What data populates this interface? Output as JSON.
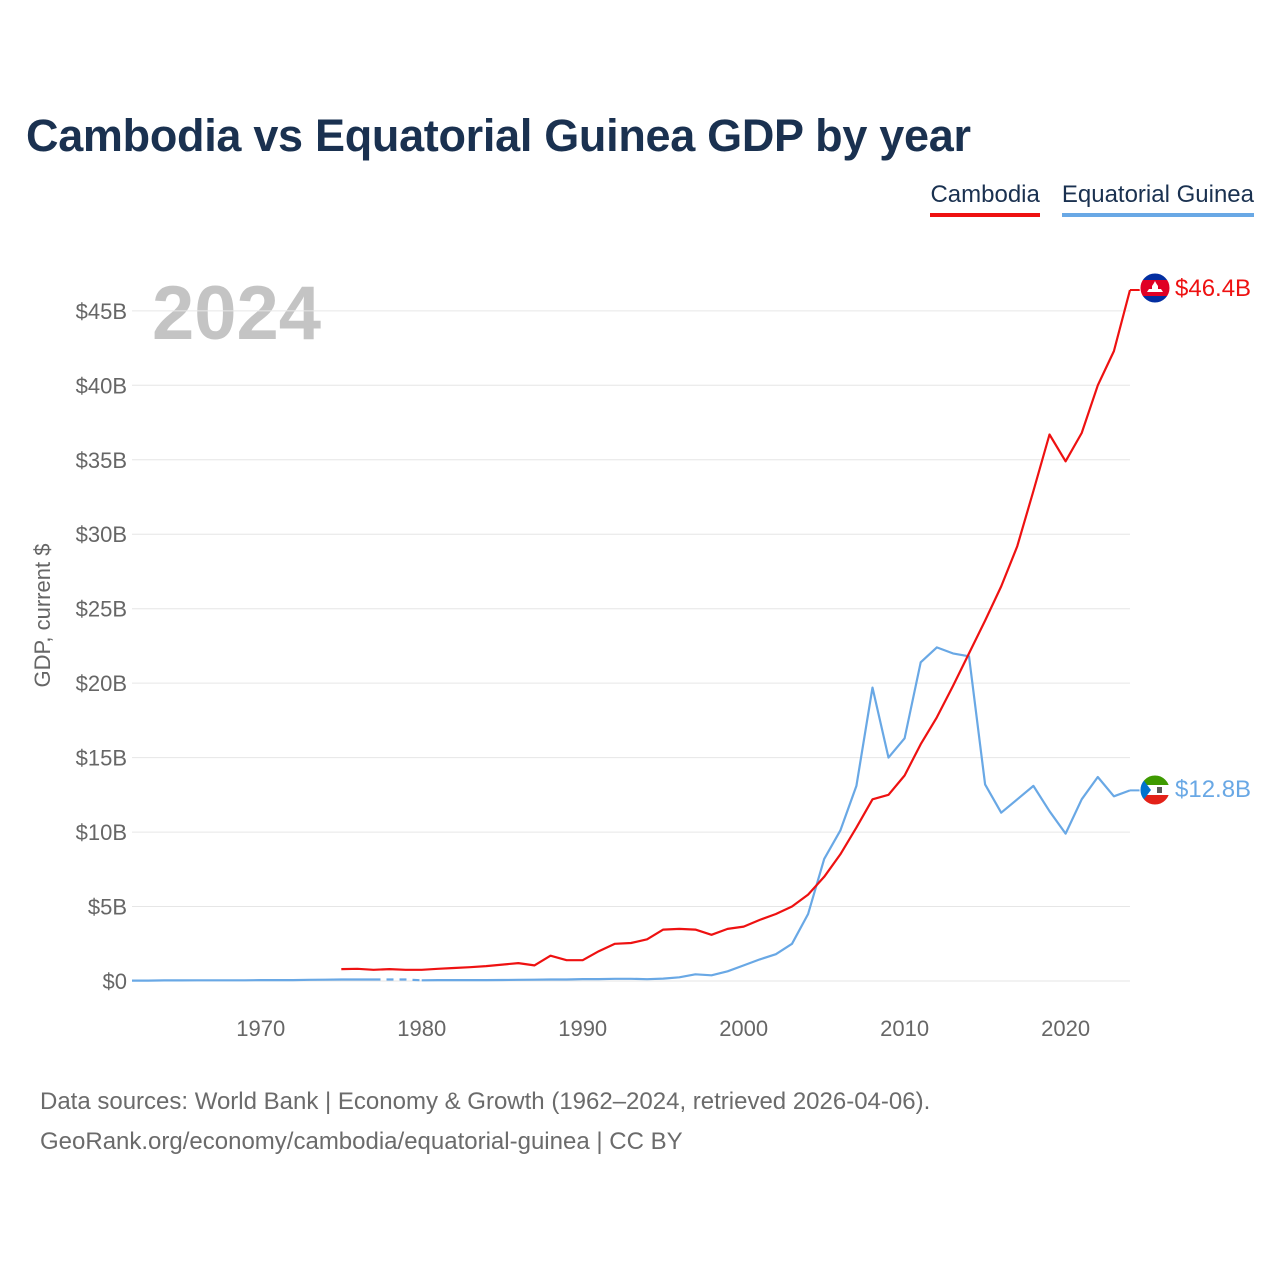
{
  "title": "Cambodia vs Equatorial Guinea GDP by year",
  "legend": {
    "cambodia": "Cambodia",
    "equatorial_guinea": "Equatorial Guinea"
  },
  "footer": {
    "line1": "Data sources: World Bank | Economy & Growth (1962–2024, retrieved 2026-04-06).",
    "line2": "GeoRank.org/economy/cambodia/equatorial-guinea | CC BY"
  },
  "chart_data": {
    "type": "line",
    "title": "Cambodia vs Equatorial Guinea GDP by year",
    "year_label": "2024",
    "xlabel": "",
    "ylabel": "GDP, current $",
    "xlim": [
      1962,
      2024
    ],
    "ylim": [
      0,
      46.4
    ],
    "x_ticks": [
      1970,
      1980,
      1990,
      2000,
      2010,
      2020
    ],
    "y_ticks": [
      0,
      5,
      10,
      15,
      20,
      25,
      30,
      35,
      40,
      45
    ],
    "y_tick_labels": [
      "$0",
      "$5B",
      "$10B",
      "$15B",
      "$20B",
      "$25B",
      "$30B",
      "$35B",
      "$40B",
      "$45B"
    ],
    "unit": "billion USD",
    "colors": {
      "cambodia": "#ee1111",
      "equatorial_guinea": "#69a8e5",
      "grid": "#e6e6e6",
      "axis_text": "#666666",
      "year_watermark": "#c4c4c4"
    },
    "series": [
      {
        "name": "Cambodia",
        "end_label": "$46.4B",
        "x": [
          1975,
          1976,
          1977,
          1978,
          1979,
          1980,
          1981,
          1982,
          1983,
          1984,
          1985,
          1986,
          1987,
          1988,
          1989,
          1990,
          1991,
          1992,
          1993,
          1994,
          1995,
          1996,
          1997,
          1998,
          1999,
          2000,
          2001,
          2002,
          2003,
          2004,
          2005,
          2006,
          2007,
          2008,
          2009,
          2010,
          2011,
          2012,
          2013,
          2014,
          2015,
          2016,
          2017,
          2018,
          2019,
          2020,
          2021,
          2022,
          2023,
          2024
        ],
        "values": [
          0.8,
          0.82,
          0.75,
          0.8,
          0.75,
          0.75,
          0.82,
          0.87,
          0.93,
          1.0,
          1.1,
          1.2,
          1.05,
          1.7,
          1.4,
          1.4,
          2.0,
          2.5,
          2.55,
          2.8,
          3.45,
          3.5,
          3.45,
          3.1,
          3.5,
          3.65,
          4.1,
          4.5,
          5.0,
          5.8,
          7.0,
          8.5,
          10.3,
          12.2,
          12.5,
          13.8,
          15.9,
          17.7,
          19.8,
          22.0,
          24.2,
          26.5,
          29.2,
          32.9,
          36.7,
          34.9,
          36.8,
          40.0,
          42.3,
          46.4
        ]
      },
      {
        "name": "Equatorial Guinea",
        "end_label": "$12.8B",
        "x": [
          1962,
          1963,
          1964,
          1965,
          1966,
          1967,
          1968,
          1969,
          1970,
          1971,
          1972,
          1973,
          1974,
          1975,
          1976,
          1977,
          1978,
          1979,
          1980,
          1981,
          1982,
          1983,
          1984,
          1985,
          1986,
          1987,
          1988,
          1989,
          1990,
          1991,
          1992,
          1993,
          1994,
          1995,
          1996,
          1997,
          1998,
          1999,
          2000,
          2001,
          2002,
          2003,
          2004,
          2005,
          2006,
          2007,
          2008,
          2009,
          2010,
          2011,
          2012,
          2013,
          2014,
          2015,
          2016,
          2017,
          2018,
          2019,
          2020,
          2021,
          2022,
          2023,
          2024
        ],
        "values": [
          0.03,
          0.03,
          0.04,
          0.04,
          0.05,
          0.05,
          0.05,
          0.05,
          0.06,
          0.06,
          0.06,
          0.08,
          0.09,
          0.1,
          0.1,
          0.1,
          0.1,
          0.1,
          0.05,
          0.06,
          0.06,
          0.06,
          0.06,
          0.07,
          0.08,
          0.09,
          0.1,
          0.1,
          0.13,
          0.13,
          0.15,
          0.15,
          0.12,
          0.16,
          0.25,
          0.45,
          0.38,
          0.65,
          1.05,
          1.45,
          1.8,
          2.5,
          4.5,
          8.2,
          10.1,
          13.1,
          19.7,
          15.0,
          16.3,
          21.4,
          22.4,
          22.0,
          21.8,
          13.2,
          11.3,
          12.2,
          13.1,
          11.4,
          9.9,
          12.2,
          13.7,
          12.4,
          12.8
        ]
      }
    ],
    "dashed_segment": {
      "series": "Equatorial Guinea",
      "x": [
        1977,
        1980
      ]
    }
  }
}
